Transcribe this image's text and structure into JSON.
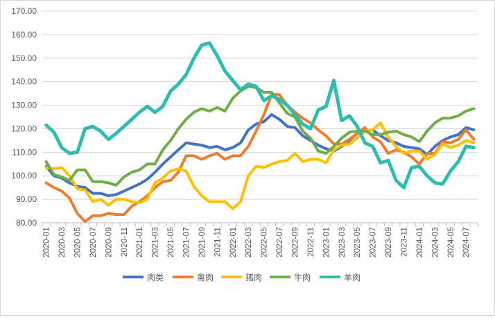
{
  "chart_data": {
    "type": "line",
    "title": "",
    "xlabel": "",
    "ylabel": "",
    "ylim": [
      80,
      170
    ],
    "yticks": [
      "80.00",
      "90.00",
      "100.00",
      "110.00",
      "120.00",
      "130.00",
      "140.00",
      "150.00",
      "160.00",
      "170.00"
    ],
    "grid": true,
    "legend_position": "bottom",
    "x": [
      "2020-01",
      "2020-02",
      "2020-03",
      "2020-04",
      "2020-05",
      "2020-06",
      "2020-07",
      "2020-08",
      "2020-09",
      "2020-10",
      "2020-11",
      "2020-12",
      "2021-01",
      "2021-02",
      "2021-03",
      "2021-04",
      "2021-05",
      "2021-06",
      "2021-07",
      "2021-08",
      "2021-09",
      "2021-10",
      "2021-11",
      "2021-12",
      "2022-01",
      "2022-02",
      "2022-03",
      "2022-04",
      "2022-05",
      "2022-06",
      "2022-07",
      "2022-08",
      "2022-09",
      "2022-10",
      "2022-11",
      "2022-12",
      "2023-01",
      "2023-02",
      "2023-03",
      "2023-04",
      "2023-05",
      "2023-06",
      "2023-07",
      "2023-08",
      "2023-09",
      "2023-10",
      "2023-11",
      "2023-12",
      "2024-01",
      "2024-02",
      "2024-03",
      "2024-04",
      "2024-05",
      "2024-06",
      "2024-07",
      "2024-08"
    ],
    "xtick_labels": [
      "2020-01",
      "2020-03",
      "2020-05",
      "2020-07",
      "2020-09",
      "2020-11",
      "2021-01",
      "2021-03",
      "2021-05",
      "2021-07",
      "2021-09",
      "2021-11",
      "2022-01",
      "2022-03",
      "2022-05",
      "2022-07",
      "2022-09",
      "2022-11",
      "2023-01",
      "2023-03",
      "2023-05",
      "2023-07",
      "2023-09",
      "2023-11",
      "2024-01",
      "2024-03",
      "2024-05",
      "2024-07"
    ],
    "series": [
      {
        "name": "肉类",
        "color": "#4472c4",
        "values": [
          104,
          100,
          99,
          97,
          95.5,
          95,
          92.5,
          92.5,
          91.5,
          92,
          93.5,
          95,
          96.5,
          98.5,
          101.5,
          105,
          108,
          111,
          114,
          113.5,
          113,
          112,
          112.5,
          111,
          112,
          114,
          119.5,
          122,
          123,
          126,
          124,
          121,
          120.5,
          117,
          115,
          113,
          111.5,
          110.5,
          112.5,
          115,
          118,
          119,
          119.5,
          117,
          115,
          114,
          112.5,
          112,
          111.5,
          109,
          112.5,
          115,
          116.5,
          117.5,
          120.5,
          119.5
        ]
      },
      {
        "name": "禽肉",
        "color": "#ed7d31",
        "values": [
          97,
          95,
          93.5,
          90.5,
          84,
          80.5,
          83,
          83,
          84,
          83.5,
          83.5,
          87,
          89,
          91.5,
          95,
          97.5,
          98,
          101.5,
          108.5,
          108.5,
          107,
          108.5,
          109.5,
          107,
          108.5,
          108.5,
          112.5,
          119,
          126,
          134.5,
          134.5,
          130,
          127,
          124.5,
          122.5,
          119.5,
          117,
          113.5,
          113.5,
          115.5,
          118,
          120.5,
          116.5,
          114.5,
          109.5,
          111,
          110,
          108,
          105,
          109.5,
          109.5,
          114.5,
          114,
          115.5,
          119.5,
          115.5
        ]
      },
      {
        "name": "猪肉",
        "color": "#ffc000",
        "values": [
          103.5,
          103,
          103.5,
          100,
          94.5,
          94,
          89,
          90,
          87.5,
          90,
          90,
          89,
          88.5,
          90,
          97,
          99,
          102,
          103,
          102,
          95.5,
          91.5,
          89,
          89,
          89,
          86,
          89,
          100,
          104,
          103.5,
          105,
          106,
          106.5,
          109.5,
          106,
          107,
          107,
          105.5,
          111,
          113,
          113.5,
          116,
          119,
          119.5,
          122.5,
          116.5,
          112.5,
          109.5,
          110.5,
          110.5,
          107,
          109,
          113.5,
          112,
          113,
          115,
          114
        ]
      },
      {
        "name": "牛肉",
        "color": "#70ad47",
        "values": [
          106,
          100.5,
          99.5,
          98,
          102.5,
          102.5,
          97.5,
          97.5,
          97,
          96,
          99.5,
          101.5,
          102.5,
          105,
          105,
          111,
          115,
          120,
          124,
          127,
          128.5,
          127.5,
          129,
          127.5,
          133,
          136,
          138,
          137.5,
          135.5,
          135.5,
          131,
          126.5,
          125,
          119,
          116,
          110.5,
          109.5,
          112.5,
          116,
          118.5,
          119,
          119,
          117.5,
          117.5,
          118.5,
          119,
          117.5,
          116.5,
          114.5,
          119,
          122.5,
          124.5,
          124.5,
          125.5,
          127.5,
          128.5
        ]
      },
      {
        "name": "羊肉",
        "color": "#2ebdb0",
        "values": [
          121.5,
          118.5,
          112,
          109.5,
          110,
          120,
          121,
          119,
          115.5,
          118,
          121,
          124,
          127,
          129.5,
          127,
          129.5,
          136,
          139,
          143,
          150,
          155.5,
          156.5,
          151,
          144.5,
          140.5,
          136.5,
          139,
          138,
          132,
          134,
          132.5,
          130,
          126,
          122,
          120,
          128,
          129.5,
          140.5,
          123.5,
          125.5,
          121,
          114,
          112.5,
          105.5,
          106.5,
          98,
          95,
          103.5,
          104,
          100,
          97,
          96.5,
          102,
          106,
          112.5,
          112
        ]
      }
    ]
  }
}
